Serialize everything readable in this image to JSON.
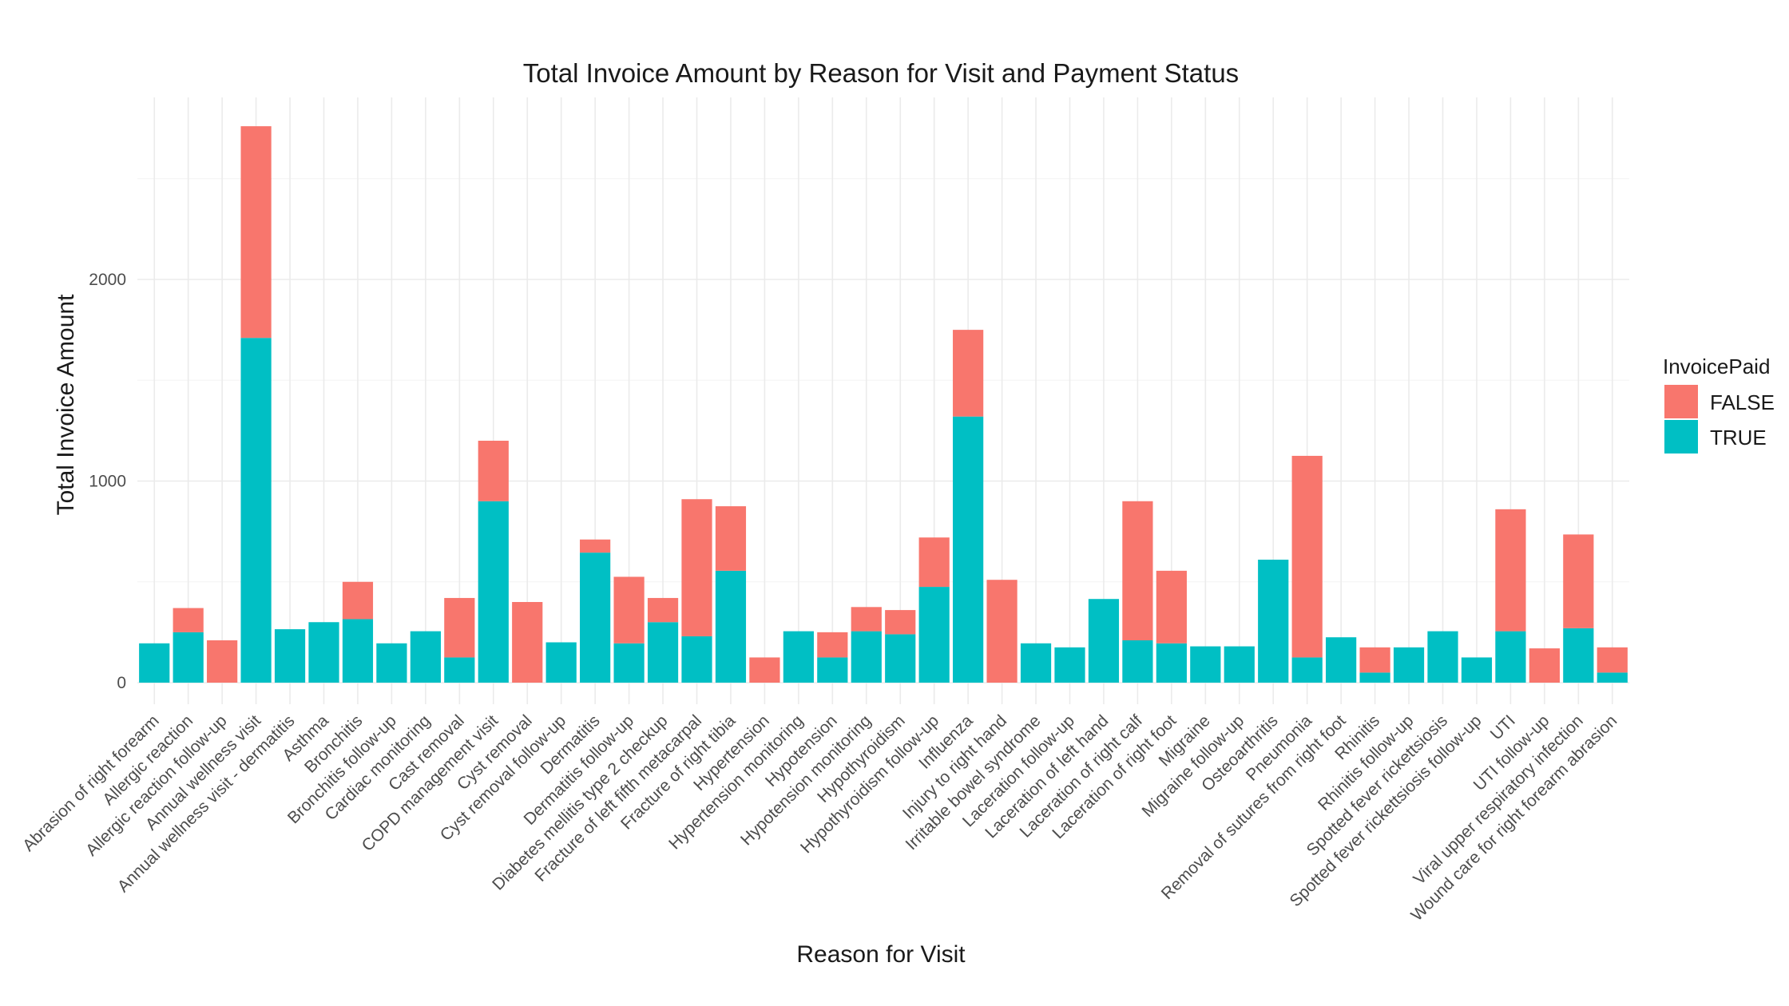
{
  "chart_data": {
    "type": "bar",
    "stacked": true,
    "title": "Total Invoice Amount by Reason for Visit and Payment Status",
    "xlabel": "Reason for Visit",
    "ylabel": "Total Invoice Amount",
    "ylim": [
      0,
      2900
    ],
    "yticks": [
      0,
      1000,
      2000
    ],
    "grid": true,
    "legend": {
      "title": "InvoicePaid",
      "position": "right"
    },
    "categories": [
      "Abrasion of right forearm",
      "Allergic reaction",
      "Allergic reaction follow-up",
      "Annual wellness visit",
      "Annual wellness visit - dermatitis",
      "Asthma",
      "Bronchitis",
      "Bronchitis follow-up",
      "Cardiac monitoring",
      "Cast removal",
      "COPD management visit",
      "Cyst removal",
      "Cyst removal follow-up",
      "Dermatitis",
      "Dermatitis follow-up",
      "Diabetes mellitis type 2 checkup",
      "Fracture of left fifth metacarpal",
      "Fracture of right tibia",
      "Hypertension",
      "Hypertension monitoring",
      "Hypotension",
      "Hypotension monitoring",
      "Hypothyroidism",
      "Hypothyroidism follow-up",
      "Influenza",
      "Injury to right hand",
      "Irritable bowel syndrome",
      "Laceration follow-up",
      "Laceration of left hand",
      "Laceration of right calf",
      "Laceration of right foot",
      "Migraine",
      "Migraine follow-up",
      "Osteoarthritis",
      "Pneumonia",
      "Removal of sutures from right foot",
      "Rhinitis",
      "Rhinitis follow-up",
      "Spotted fever rickettsiosis",
      "Spotted fever rickettsiosis follow-up",
      "UTI",
      "UTI follow-up",
      "Viral upper respiratory infection",
      "Wound care for right forearm abrasion"
    ],
    "series": [
      {
        "name": "FALSE",
        "color": "#F8766D",
        "values": [
          0,
          120,
          210,
          1050,
          0,
          0,
          185,
          0,
          0,
          295,
          300,
          400,
          0,
          65,
          330,
          120,
          680,
          320,
          125,
          0,
          125,
          120,
          120,
          245,
          430,
          510,
          0,
          0,
          0,
          690,
          360,
          0,
          0,
          0,
          1000,
          0,
          125,
          0,
          0,
          0,
          605,
          170,
          465,
          125
        ]
      },
      {
        "name": "TRUE",
        "color": "#00BFC4",
        "values": [
          195,
          250,
          0,
          1710,
          265,
          300,
          315,
          195,
          255,
          125,
          900,
          0,
          200,
          645,
          195,
          300,
          230,
          555,
          0,
          255,
          125,
          255,
          240,
          475,
          1320,
          0,
          195,
          175,
          415,
          210,
          195,
          180,
          180,
          610,
          125,
          225,
          50,
          175,
          255,
          125,
          255,
          0,
          270,
          50
        ]
      }
    ]
  }
}
